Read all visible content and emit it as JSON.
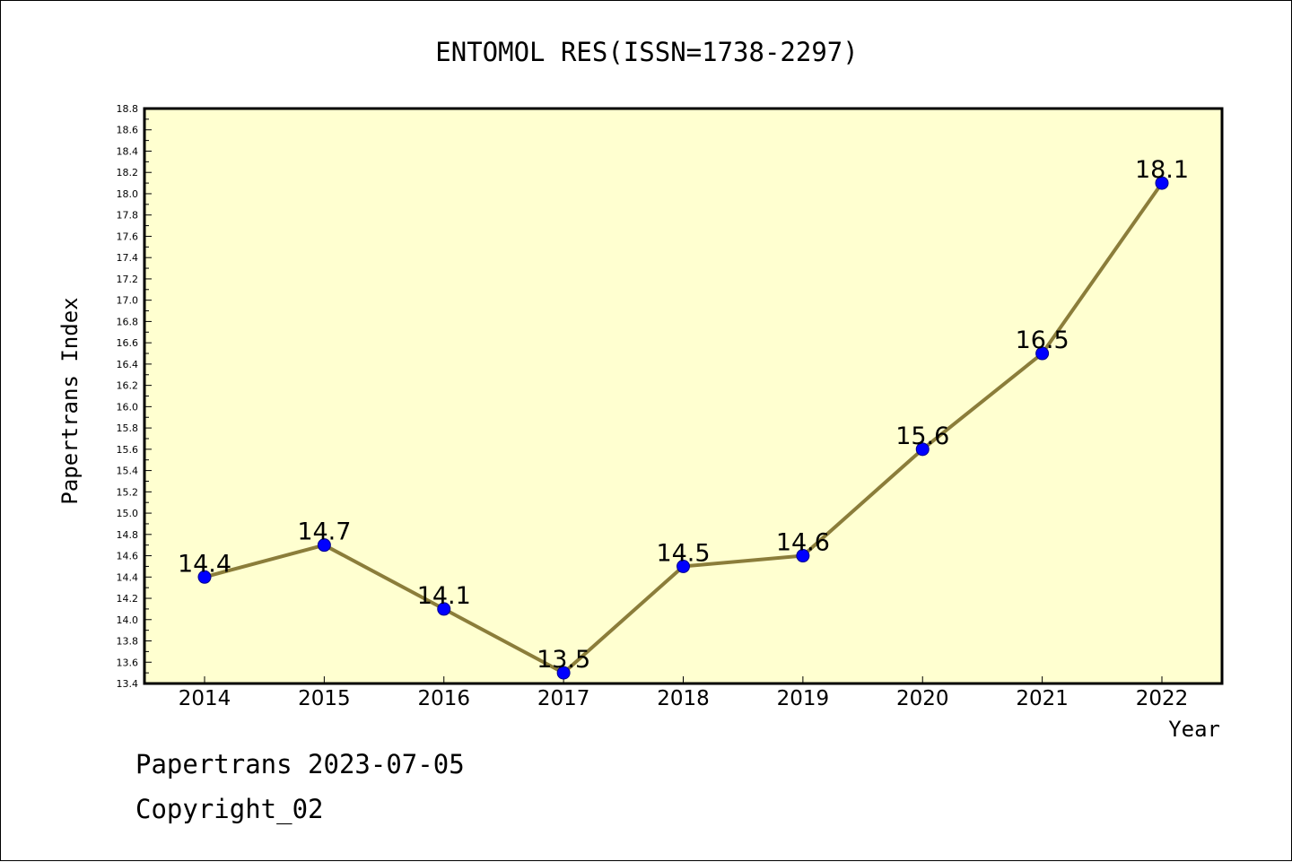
{
  "chart_data": {
    "type": "line",
    "title": "ENTOMOL RES(ISSN=1738-2297)",
    "xlabel": "Year",
    "ylabel": "Papertrans Index",
    "categories": [
      "2014",
      "2015",
      "2016",
      "2017",
      "2018",
      "2019",
      "2020",
      "2021",
      "2022"
    ],
    "series": [
      {
        "values": [
          14.4,
          14.7,
          14.1,
          13.5,
          14.5,
          14.6,
          15.6,
          16.5,
          18.1
        ]
      }
    ],
    "data_labels": [
      "14.4",
      "14.7",
      "14.1",
      "13.5",
      "14.5",
      "14.6",
      "15.6",
      "16.5",
      "18.1"
    ],
    "ylim": [
      13.4,
      18.8
    ],
    "y_ticks": [
      "13.4",
      "13.6",
      "13.8",
      "14.0",
      "14.2",
      "14.4",
      "14.6",
      "14.8",
      "15.0",
      "15.2",
      "15.4",
      "15.6",
      "15.8",
      "16.0",
      "16.2",
      "16.4",
      "16.6",
      "16.8",
      "17.0",
      "17.2",
      "17.4",
      "17.6",
      "17.8",
      "18.0",
      "18.2",
      "18.4",
      "18.6",
      "18.8"
    ],
    "grid": false,
    "legend": "none",
    "colors": {
      "plot_background": "#ffffd0",
      "line": "#8b7d3a",
      "marker": "#0000ff"
    }
  },
  "footer": {
    "date_line": "Papertrans 2023-07-05",
    "copyright": "Copyright_02"
  }
}
